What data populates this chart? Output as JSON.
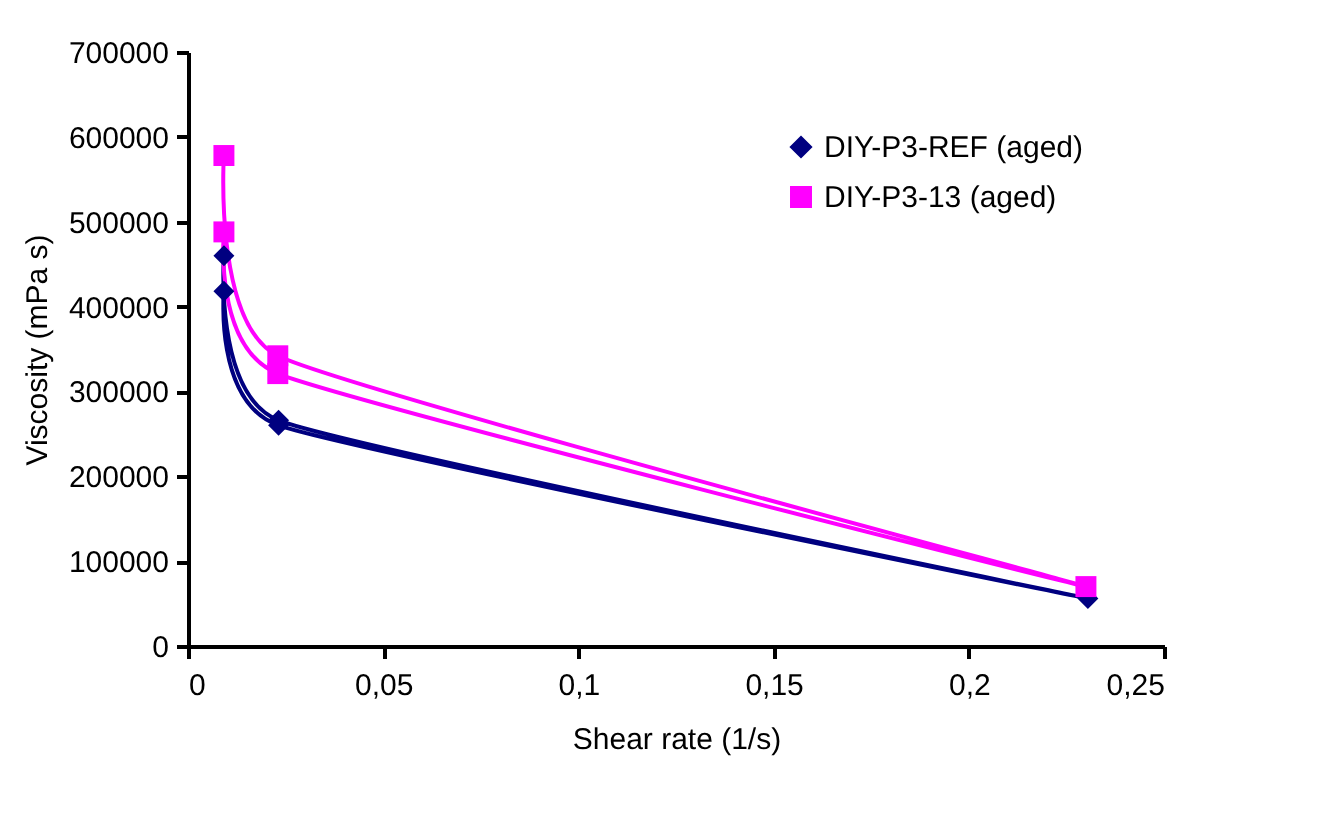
{
  "chart_data": {
    "type": "line",
    "xlabel": "Shear rate (1/s)",
    "ylabel": "Viscosity (mPa s)",
    "series": [
      {
        "name": "DIY-P3-REF (aged)",
        "color": "#000080",
        "marker": "diamond",
        "x": [
          0.0092,
          0.0232,
          0.2305,
          0.0232,
          0.0092
        ],
        "values": [
          460000,
          266000,
          56000,
          260000,
          418000
        ]
      },
      {
        "name": "DIY-P3-13 (aged)",
        "color": "#ff00ff",
        "marker": "square",
        "x": [
          0.0092,
          0.023,
          0.23,
          0.023,
          0.0092
        ],
        "values": [
          578000,
          342000,
          70000,
          321000,
          488000
        ]
      }
    ],
    "xlim": [
      0,
      0.25
    ],
    "xticks": [
      0,
      {
        "value": 0.05,
        "label": "0,05"
      },
      {
        "value": 0.1,
        "label": "0,1"
      },
      {
        "value": 0.15,
        "label": "0,15"
      },
      {
        "value": 0.2,
        "label": "0,2"
      },
      {
        "value": 0.25,
        "label": "0,25"
      }
    ],
    "ylim": [
      0,
      700000
    ],
    "yticks": [
      0,
      100000,
      200000,
      300000,
      400000,
      500000,
      600000,
      700000
    ],
    "grid": false,
    "legend": "top right"
  }
}
